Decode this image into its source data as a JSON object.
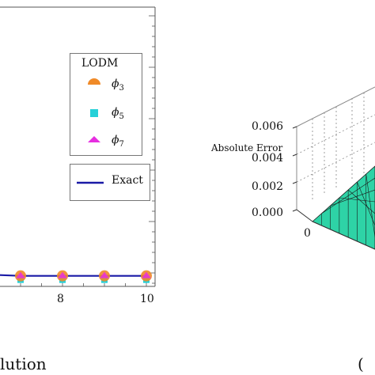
{
  "left_panel": {
    "chart_data": {
      "type": "scatter",
      "x_ticks": [
        "8",
        "10"
      ],
      "x": [
        7,
        8,
        9,
        10
      ],
      "ylim": [
        0,
        1
      ],
      "legend_title": "LODM",
      "series": [
        {
          "name": "ϕ3",
          "symbol": "ϕ",
          "subscript": "3",
          "marker": "half-disk",
          "color": "#f08a28",
          "values": [
            0.01,
            0.01,
            0.01,
            0.01
          ]
        },
        {
          "name": "ϕ5",
          "symbol": "ϕ",
          "subscript": "5",
          "marker": "square",
          "color": "#26d0d8",
          "values": [
            0.01,
            0.01,
            0.01,
            0.01
          ]
        },
        {
          "name": "ϕ7",
          "symbol": "ϕ",
          "subscript": "7",
          "marker": "triangle",
          "color": "#e62ee0",
          "values": [
            0.01,
            0.01,
            0.01,
            0.01
          ]
        },
        {
          "name": "Exact",
          "marker": "line",
          "color": "#1a1aa6",
          "values": [
            0.01,
            0.01,
            0.01,
            0.01
          ]
        }
      ],
      "legend_placement": "right"
    },
    "caption": "lution"
  },
  "right_panel": {
    "chart_data": {
      "type": "surface",
      "z_label": "Absolute Error",
      "z_ticks": [
        "0.006",
        "0.004",
        "0.002",
        "0.000"
      ],
      "zlim": [
        0,
        0.006
      ],
      "x_tick": "0",
      "surface_color": "#2ed3a6"
    },
    "caption": "("
  }
}
